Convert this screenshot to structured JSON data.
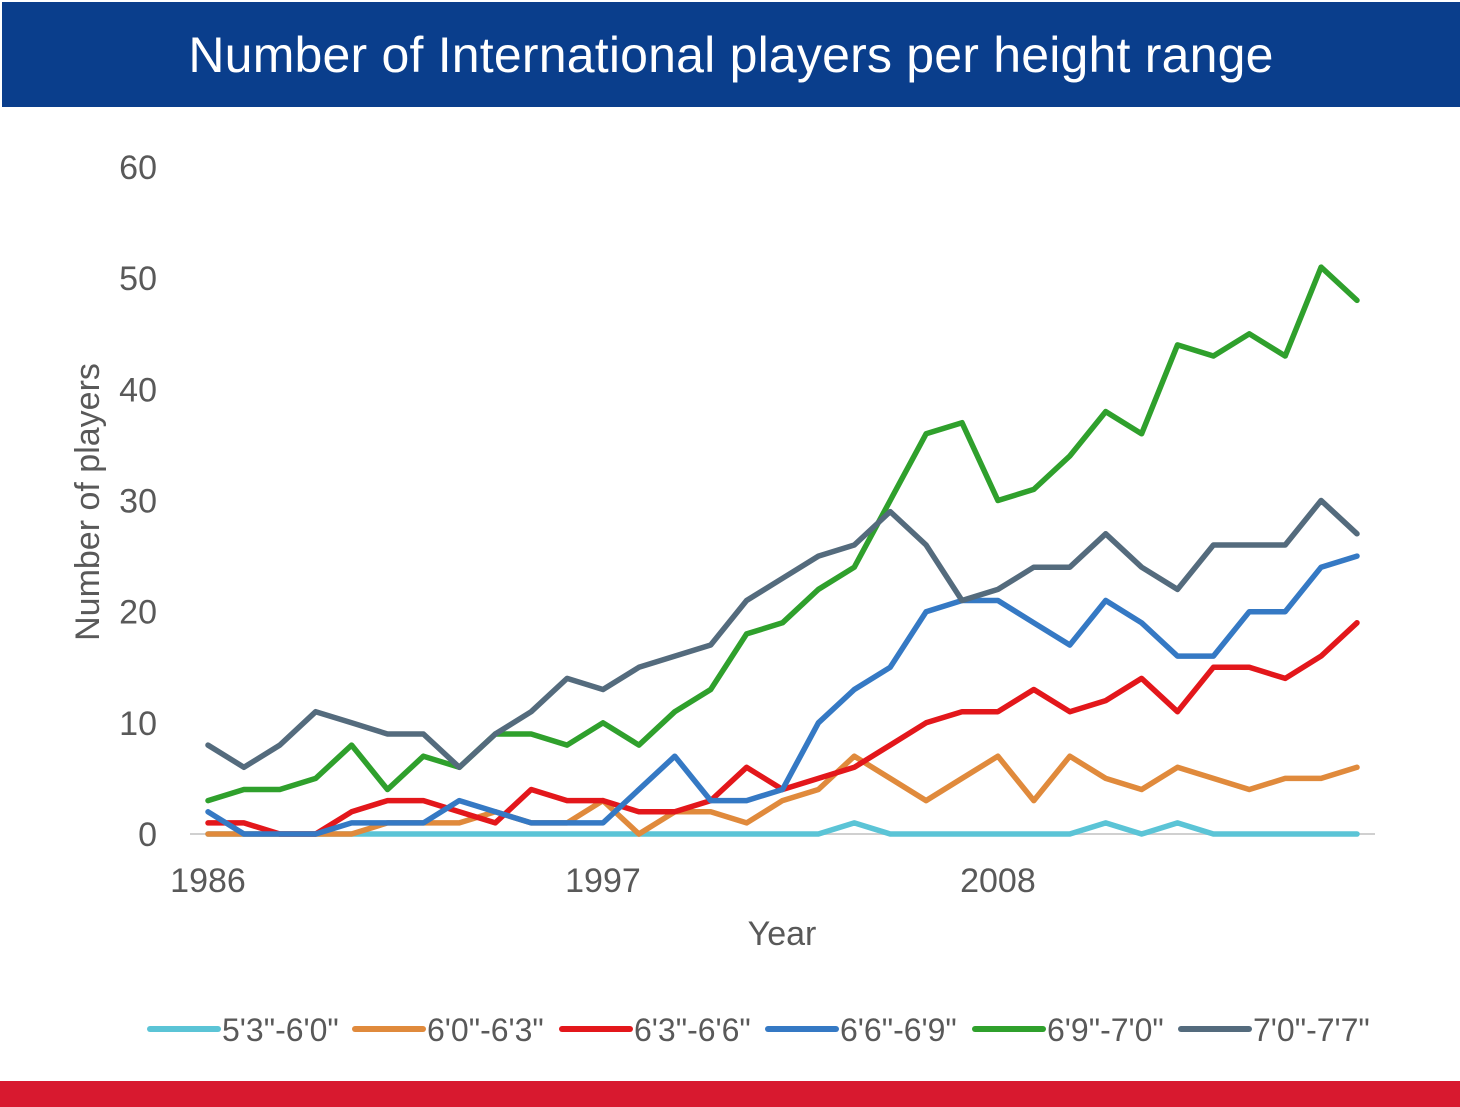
{
  "header": {
    "title": "Number of International players per height range"
  },
  "footer": {
    "accent_color": "#d8192f"
  },
  "chart_data": {
    "type": "line",
    "title": "Number of International players per height range",
    "xlabel": "Year",
    "ylabel": "Number of players",
    "xlim": [
      1986,
      2018
    ],
    "ylim": [
      0,
      60
    ],
    "yticks": [
      0,
      10,
      20,
      30,
      40,
      50,
      60
    ],
    "xtick_labels": [
      "1986",
      "1997",
      "2008"
    ],
    "grid": false,
    "legend_position": "bottom",
    "x": [
      1986,
      1987,
      1988,
      1989,
      1990,
      1991,
      1992,
      1993,
      1994,
      1995,
      1996,
      1997,
      1998,
      1999,
      2000,
      2001,
      2002,
      2003,
      2004,
      2005,
      2006,
      2007,
      2008,
      2009,
      2010,
      2011,
      2012,
      2013,
      2014,
      2015,
      2016,
      2017,
      2018
    ],
    "series": [
      {
        "name": "5'3\"-6'0\"",
        "color": "#5bc4d6",
        "values": [
          0,
          0,
          0,
          0,
          0,
          0,
          0,
          0,
          0,
          0,
          0,
          0,
          0,
          0,
          0,
          0,
          0,
          0,
          1,
          0,
          0,
          0,
          0,
          0,
          0,
          1,
          0,
          1,
          0,
          0,
          0,
          0,
          0
        ]
      },
      {
        "name": "6'0\"-6'3\"",
        "color": "#e08a3c",
        "values": [
          0,
          0,
          0,
          0,
          0,
          1,
          1,
          1,
          2,
          1,
          1,
          3,
          0,
          2,
          2,
          1,
          3,
          4,
          7,
          5,
          3,
          5,
          7,
          3,
          7,
          5,
          4,
          6,
          5,
          4,
          5,
          5,
          6
        ]
      },
      {
        "name": "6'3\"-6'6\"",
        "color": "#e3171b",
        "values": [
          1,
          1,
          0,
          0,
          2,
          3,
          3,
          2,
          1,
          4,
          3,
          3,
          2,
          2,
          3,
          6,
          4,
          5,
          6,
          8,
          10,
          11,
          11,
          13,
          11,
          12,
          14,
          11,
          15,
          15,
          14,
          16,
          19
        ]
      },
      {
        "name": "6'6\"-6'9\"",
        "color": "#3579c4",
        "values": [
          2,
          0,
          0,
          0,
          1,
          1,
          1,
          3,
          2,
          1,
          1,
          1,
          4,
          7,
          3,
          3,
          4,
          10,
          13,
          15,
          20,
          21,
          21,
          19,
          17,
          21,
          19,
          16,
          16,
          20,
          20,
          24,
          25
        ]
      },
      {
        "name": "6'9\"-7'0\"",
        "color": "#2fa02c",
        "values": [
          3,
          4,
          4,
          5,
          8,
          4,
          7,
          6,
          9,
          9,
          8,
          10,
          8,
          11,
          13,
          18,
          19,
          22,
          24,
          30,
          36,
          37,
          30,
          31,
          34,
          38,
          36,
          44,
          43,
          45,
          43,
          51,
          48
        ]
      },
      {
        "name": "7'0\"-7'7\"",
        "color": "#546b7d",
        "values": [
          8,
          6,
          8,
          11,
          10,
          9,
          9,
          6,
          9,
          11,
          14,
          13,
          15,
          16,
          17,
          21,
          23,
          25,
          26,
          29,
          26,
          21,
          22,
          24,
          24,
          27,
          24,
          22,
          26,
          26,
          26,
          30,
          27
        ]
      }
    ]
  }
}
